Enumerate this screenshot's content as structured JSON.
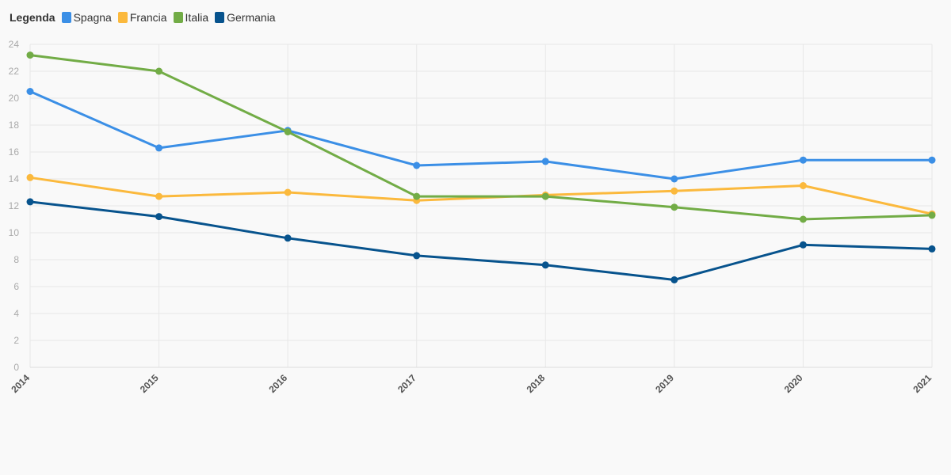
{
  "legend": {
    "title": "Legenda"
  },
  "chart_data": {
    "type": "line",
    "title": "",
    "xlabel": "",
    "ylabel": "",
    "x": [
      "2014",
      "2015",
      "2016",
      "2017",
      "2018",
      "2019",
      "2020",
      "2021"
    ],
    "ylim": [
      0,
      24
    ],
    "yticks": [
      0,
      2,
      4,
      6,
      8,
      10,
      12,
      14,
      16,
      18,
      20,
      22,
      24
    ],
    "grid": true,
    "legend_position": "top-left",
    "series": [
      {
        "name": "Spagna",
        "color": "#3b8fe6",
        "values": [
          20.5,
          16.3,
          17.6,
          15.0,
          15.3,
          14.0,
          15.4,
          15.4
        ]
      },
      {
        "name": "Francia",
        "color": "#fbb93d",
        "values": [
          14.1,
          12.7,
          13.0,
          12.4,
          12.8,
          13.1,
          13.5,
          11.4
        ]
      },
      {
        "name": "Italia",
        "color": "#72ac46",
        "values": [
          23.2,
          22.0,
          17.5,
          12.7,
          12.7,
          11.9,
          11.0,
          11.3
        ]
      },
      {
        "name": "Germania",
        "color": "#07538d",
        "values": [
          12.3,
          11.2,
          9.6,
          8.3,
          7.6,
          6.5,
          9.1,
          8.8
        ]
      }
    ]
  }
}
